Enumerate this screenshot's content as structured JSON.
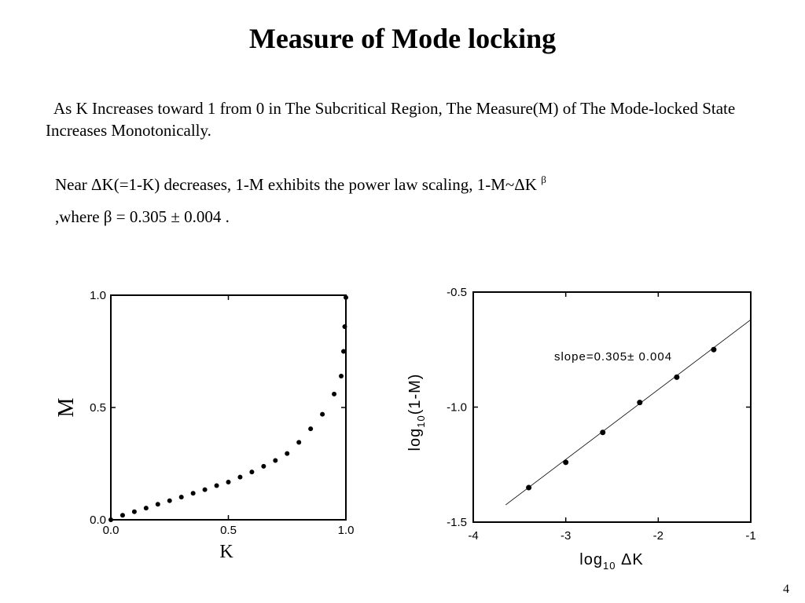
{
  "title": "Measure of  Mode locking",
  "paragraph1": "As K Increases toward 1  from 0 in The Subcritical Region, The Measure(M) of  The Mode-locked State Increases Monotonically.",
  "paragraph2": {
    "text": "Near ΔK(=1-K) decreases, 1-M exhibits the power law scaling, 1-M~ΔK ",
    "superscript": "β"
  },
  "paragraph3": ",where β = 0.305 ± 0.004 .",
  "page_number": "4",
  "chart_data": [
    {
      "type": "scatter",
      "title": "",
      "xlabel": "K",
      "ylabel": "M",
      "xlim": [
        0,
        1
      ],
      "ylim": [
        0,
        1
      ],
      "xticks": [
        "0.0",
        "0.5",
        "1.0"
      ],
      "yticks": [
        "0.0",
        "0.5",
        "1.0"
      ],
      "grid": false,
      "series": [
        {
          "x": [
            0.0,
            0.05,
            0.1,
            0.15,
            0.2,
            0.25,
            0.3,
            0.35,
            0.4,
            0.45,
            0.5,
            0.55,
            0.6,
            0.65,
            0.7,
            0.75,
            0.8,
            0.85,
            0.9,
            0.95,
            0.98,
            0.99,
            0.995,
            1.0
          ],
          "y": [
            0.0,
            0.02,
            0.036,
            0.052,
            0.069,
            0.085,
            0.101,
            0.118,
            0.134,
            0.152,
            0.168,
            0.19,
            0.213,
            0.238,
            0.264,
            0.295,
            0.345,
            0.405,
            0.47,
            0.56,
            0.64,
            0.75,
            0.86,
            0.99
          ]
        }
      ]
    },
    {
      "type": "scatter",
      "title": "",
      "xlabel": "log10 ΔK",
      "xlabel_parts": {
        "pre": "log",
        "sub": "10",
        "post": " ΔK"
      },
      "ylabel": "log10(1-M)",
      "ylabel_parts": {
        "pre": "log",
        "sub": "10",
        "post": "(1-M)"
      },
      "xlim": [
        -4,
        -1
      ],
      "ylim": [
        -1.5,
        -0.5
      ],
      "xticks": [
        "-4",
        "-3",
        "-2",
        "-1"
      ],
      "yticks": [
        "-0.5",
        "-1.0",
        "-1.5"
      ],
      "grid": false,
      "annotation": "slope=0.305± 0.004",
      "series": [
        {
          "x": [
            -3.4,
            -3.0,
            -2.6,
            -2.2,
            -1.8,
            -1.4
          ],
          "y": [
            -1.35,
            -1.24,
            -1.11,
            -0.98,
            -0.87,
            -0.75
          ]
        }
      ],
      "fit_line": {
        "x": [
          -3.65,
          -1.0
        ],
        "y": [
          -1.425,
          -0.62
        ]
      }
    }
  ]
}
